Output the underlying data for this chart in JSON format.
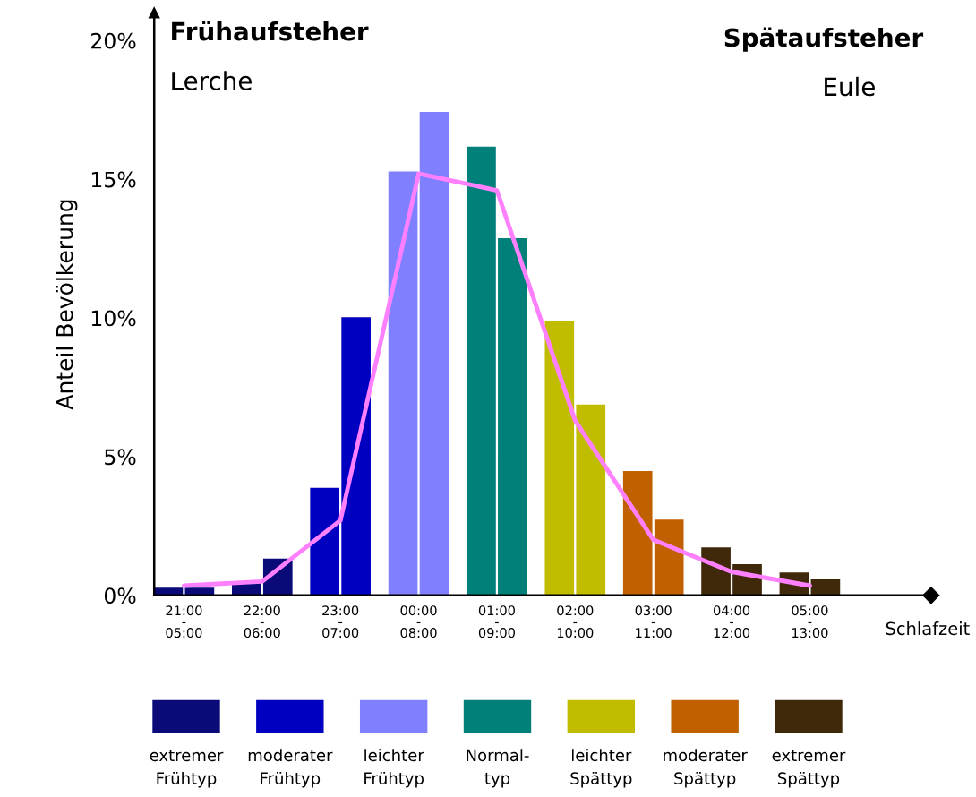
{
  "chart_data": {
    "type": "bar",
    "ylabel": "Anteil Bevölkerung",
    "xlabel": "Schlafzeit",
    "annotations": [
      "Frühaufsteher",
      "Lerche",
      "Spätaufsteher",
      "Eule"
    ],
    "categories": [
      "21:00\n-\n05:00",
      "22:00\n-\n06:00",
      "23:00\n-\n07:00",
      "00:00\n-\n08:00",
      "01:00\n-\n09:00",
      "02:00\n-\n10:00",
      "03:00\n-\n11:00",
      "04:00\n-\n12:00",
      "05:00\n-\n13:00"
    ],
    "ylim": [
      0,
      21
    ],
    "yticks": [
      {
        "value": 0,
        "label": "0%"
      },
      {
        "value": 5,
        "label": "5%"
      },
      {
        "value": 10,
        "label": "10%"
      },
      {
        "value": 15,
        "label": "15%"
      },
      {
        "value": 20,
        "label": "20%"
      }
    ],
    "grid": false,
    "legend": "bottom",
    "series": [
      {
        "name": "extremer\nFrühtyp",
        "color": "#0a0a78",
        "values": [
          0.3,
          0.5,
          null,
          null,
          null,
          null,
          null,
          null,
          null
        ]
      },
      {
        "color": "#0a0a78",
        "values": [
          0.3,
          1.35,
          null,
          null,
          null,
          null,
          null,
          null,
          null
        ]
      },
      {
        "name": "moderater\nFrühtyp",
        "color": "#0000c0",
        "values": [
          null,
          null,
          3.9,
          null,
          null,
          null,
          null,
          null,
          null
        ]
      },
      {
        "color": "#0000c0",
        "values": [
          null,
          null,
          10.05,
          null,
          null,
          null,
          null,
          null,
          null
        ]
      },
      {
        "name": "leichter\nFrühtyp",
        "color": "#8080ff",
        "values": [
          null,
          null,
          null,
          15.3,
          null,
          null,
          null,
          null,
          null
        ]
      },
      {
        "color": "#8080ff",
        "values": [
          null,
          null,
          null,
          17.45,
          null,
          null,
          null,
          null,
          null
        ]
      },
      {
        "name": "Normal-\ntyp",
        "color": "#008078",
        "values": [
          null,
          null,
          null,
          null,
          16.2,
          null,
          null,
          null,
          null
        ]
      },
      {
        "color": "#008078",
        "values": [
          null,
          null,
          null,
          null,
          12.9,
          null,
          null,
          null,
          null
        ]
      },
      {
        "name": "leichter\nSpättyp",
        "color": "#c0bc00",
        "values": [
          null,
          null,
          null,
          null,
          null,
          9.9,
          null,
          null,
          null
        ]
      },
      {
        "color": "#c0bc00",
        "values": [
          null,
          null,
          null,
          null,
          null,
          6.9,
          null,
          null,
          null
        ]
      },
      {
        "name": "moderater\nSpättyp",
        "color": "#c06000",
        "values": [
          null,
          null,
          null,
          null,
          null,
          null,
          4.5,
          null,
          null
        ]
      },
      {
        "color": "#c06000",
        "values": [
          null,
          null,
          null,
          null,
          null,
          null,
          2.75,
          null,
          null
        ]
      },
      {
        "name": "extremer\nSpättyp",
        "color": "#40280a",
        "values": [
          null,
          null,
          null,
          null,
          null,
          null,
          null,
          1.75,
          0.85
        ]
      },
      {
        "color": "#40280a",
        "values": [
          null,
          null,
          null,
          null,
          null,
          null,
          null,
          1.15,
          0.6
        ]
      },
      {
        "type": "line",
        "color": "#ff80ff",
        "values": [
          0.35,
          0.5,
          2.7,
          15.2,
          14.6,
          6.3,
          2.0,
          0.85,
          0.35
        ]
      }
    ]
  }
}
